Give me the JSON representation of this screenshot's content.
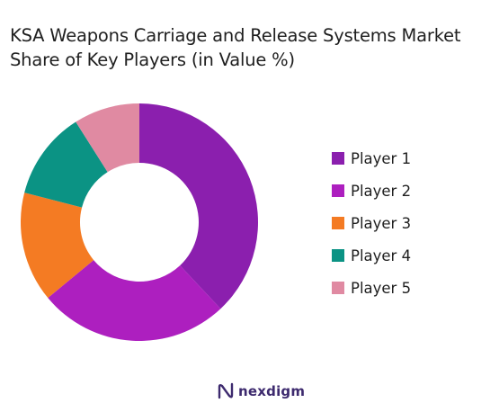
{
  "chart_data": {
    "type": "pie",
    "title_lines": [
      "KSA Weapons Carriage and Release Systems Market",
      "Share of Key Players (in Value %)"
    ],
    "categories": [
      "Player 1",
      "Player 2",
      "Player 3",
      "Player 4",
      "Player 5"
    ],
    "values": [
      38,
      26,
      15,
      12,
      9
    ],
    "colors": [
      "#8b1fae",
      "#ad1fbf",
      "#f47b23",
      "#0b9384",
      "#e08aa2"
    ],
    "donut": true,
    "legend_position": "right"
  },
  "branding": {
    "logo_text": "nexdigm"
  }
}
